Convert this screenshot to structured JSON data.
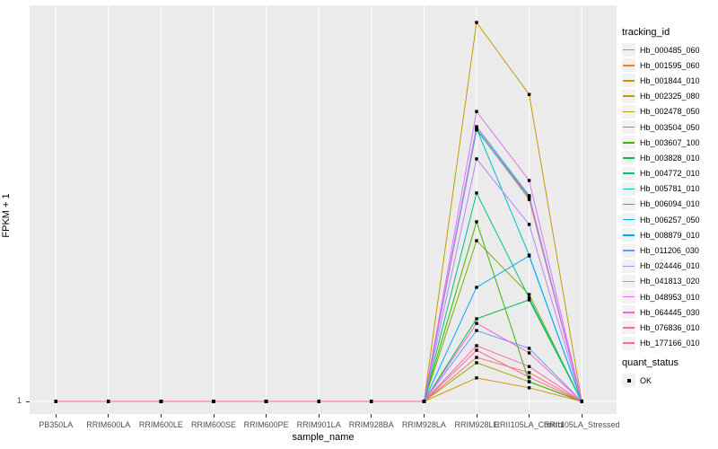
{
  "chart_data": {
    "type": "line",
    "title": "",
    "xlabel": "sample_name",
    "ylabel": "FPKM + 1",
    "x_categories": [
      "PB350LA",
      "RRIM600LA",
      "RRIM600LE",
      "RRIM600SE",
      "RRIM600PE",
      "RRIM901LA",
      "RRIM928BA",
      "RRIM928LA",
      "RRIM928LE",
      "RRII105LA_Control",
      "RRII105LA_Stressed"
    ],
    "y_axis": {
      "tick_labels": [
        "1"
      ],
      "baseline_value": 1,
      "note": "Only the break FPKM+1 = 1 is labeled on the axis; series values are relative peak heights (0-1 of panel height above the baseline), read from pixels."
    },
    "grid": true,
    "legend_position": "right",
    "legend": {
      "tracking_title": "tracking_id",
      "quant_title": "quant_status",
      "quant_items": [
        {
          "label": "OK",
          "marker": "black-square"
        }
      ]
    },
    "colors": {
      "panel_bg": "#EBEBEB",
      "gridline": "#FFFFFF",
      "marker": "#000000",
      "tick_text": "#4D4D4D",
      "legend_key_bg": "#F2F2F2"
    },
    "series": [
      {
        "name": "Hb_000485_060",
        "color": "#F8766D",
        "values": [
          0,
          0,
          0,
          0,
          0,
          0,
          0,
          0,
          0.116,
          0.076,
          0
        ]
      },
      {
        "name": "Hb_001595_060",
        "color": "#EA8331",
        "values": [
          0,
          0,
          0,
          0,
          0,
          0,
          0,
          0,
          0.718,
          0.533,
          0
        ]
      },
      {
        "name": "Hb_001844_010",
        "color": "#D89000",
        "values": [
          0,
          0,
          0,
          0,
          0,
          0,
          0,
          0,
          0.062,
          0.036,
          0
        ]
      },
      {
        "name": "Hb_002325_080",
        "color": "#C09B00",
        "values": [
          0,
          0,
          0,
          0,
          0,
          0,
          0,
          0,
          1.0,
          0.81,
          0
        ]
      },
      {
        "name": "Hb_002478_050",
        "color": "#A3A500",
        "values": [
          0,
          0,
          0,
          0,
          0,
          0,
          0,
          0,
          0.102,
          0.052,
          0
        ]
      },
      {
        "name": "Hb_003504_050",
        "color": "#7CAE00",
        "values": [
          0,
          0,
          0,
          0,
          0,
          0,
          0,
          0,
          0.424,
          0.282,
          0
        ]
      },
      {
        "name": "Hb_003607_100",
        "color": "#39B600",
        "values": [
          0,
          0,
          0,
          0,
          0,
          0,
          0,
          0,
          0.474,
          0.052,
          0
        ]
      },
      {
        "name": "Hb_003828_010",
        "color": "#00BB4E",
        "values": [
          0,
          0,
          0,
          0,
          0,
          0,
          0,
          0,
          0.218,
          0.268,
          0
        ]
      },
      {
        "name": "Hb_004772_010",
        "color": "#00C087",
        "values": [
          0,
          0,
          0,
          0,
          0,
          0,
          0,
          0,
          0.55,
          0.273,
          0
        ]
      },
      {
        "name": "Hb_005781_010",
        "color": "#00C0B2",
        "values": [
          0,
          0,
          0,
          0,
          0,
          0,
          0,
          0,
          0.716,
          0.538,
          0
        ]
      },
      {
        "name": "Hb_006094_010",
        "color": "#00BDD0",
        "values": [
          0,
          0,
          0,
          0,
          0,
          0,
          0,
          0,
          0.72,
          0.386,
          0
        ]
      },
      {
        "name": "Hb_006257_050",
        "color": "#00B5EC",
        "values": [
          0,
          0,
          0,
          0,
          0,
          0,
          0,
          0,
          0.725,
          0.543,
          0
        ]
      },
      {
        "name": "Hb_008879_010",
        "color": "#00A9FF",
        "values": [
          0,
          0,
          0,
          0,
          0,
          0,
          0,
          0,
          0.301,
          0.384,
          0
        ]
      },
      {
        "name": "Hb_011206_030",
        "color": "#619CFF",
        "values": [
          0,
          0,
          0,
          0,
          0,
          0,
          0,
          0,
          0.187,
          0.14,
          0
        ]
      },
      {
        "name": "Hb_024446_010",
        "color": "#B983FF",
        "values": [
          0,
          0,
          0,
          0,
          0,
          0,
          0,
          0,
          0.64,
          0.467,
          0
        ]
      },
      {
        "name": "Hb_041813_020",
        "color": "#DB72FB",
        "values": [
          0,
          0,
          0,
          0,
          0,
          0,
          0,
          0,
          0.765,
          0.583,
          0
        ]
      },
      {
        "name": "Hb_048953_010",
        "color": "#F265E8",
        "values": [
          0,
          0,
          0,
          0,
          0,
          0,
          0,
          0,
          0.723,
          0.54,
          0
        ]
      },
      {
        "name": "Hb_064445_030",
        "color": "#FD61D1",
        "values": [
          0,
          0,
          0,
          0,
          0,
          0,
          0,
          0,
          0.206,
          0.128,
          0
        ]
      },
      {
        "name": "Hb_076836_010",
        "color": "#FF65B0",
        "values": [
          0,
          0,
          0,
          0,
          0,
          0,
          0,
          0,
          0.147,
          0.092,
          0
        ]
      },
      {
        "name": "Hb_177166_010",
        "color": "#FF6A98",
        "values": [
          0,
          0,
          0,
          0,
          0,
          0,
          0,
          0,
          0.135,
          0.064,
          0
        ]
      }
    ]
  }
}
